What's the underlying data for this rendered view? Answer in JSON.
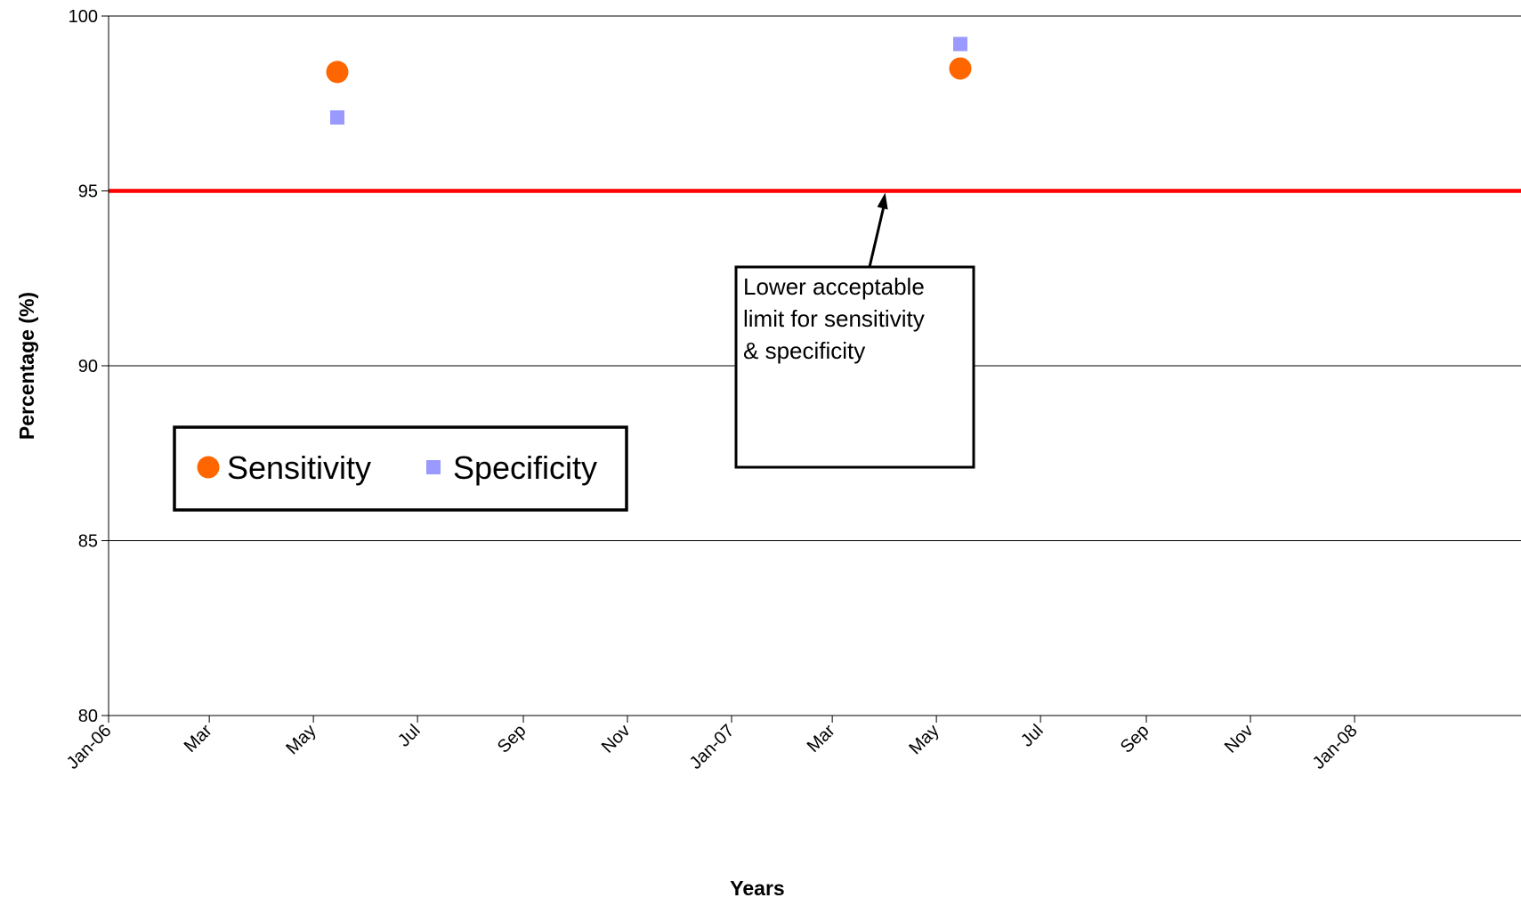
{
  "chart_data": {
    "type": "scatter",
    "xlabel": "Years",
    "ylabel": "Percentage (%)",
    "ylim": [
      80,
      100
    ],
    "yticks": [
      80,
      85,
      90,
      95,
      100
    ],
    "xlim": [
      "2006-01-01",
      "2008-01-15"
    ],
    "xticks": [
      {
        "date": "2006-01-01",
        "label": "Jan-06"
      },
      {
        "date": "2006-03-01",
        "label": "Mar"
      },
      {
        "date": "2006-05-01",
        "label": "May"
      },
      {
        "date": "2006-07-01",
        "label": "Jul"
      },
      {
        "date": "2006-09-01",
        "label": "Sep"
      },
      {
        "date": "2006-11-01",
        "label": "Nov"
      },
      {
        "date": "2007-01-01",
        "label": "Jan-07"
      },
      {
        "date": "2007-03-01",
        "label": "Mar"
      },
      {
        "date": "2007-05-01",
        "label": "May"
      },
      {
        "date": "2007-07-01",
        "label": "Jul"
      },
      {
        "date": "2007-09-01",
        "label": "Sep"
      },
      {
        "date": "2007-11-01",
        "label": "Nov"
      },
      {
        "date": "2008-01-01",
        "label": "Jan-08"
      }
    ],
    "grid": "horizontal",
    "series": [
      {
        "name": "Sensitivity",
        "marker": "circle",
        "color": "#ff6600",
        "points": [
          {
            "x": "2006-05-15",
            "y": 98.4
          },
          {
            "x": "2007-05-15",
            "y": 98.5
          }
        ]
      },
      {
        "name": "Specificity",
        "marker": "square",
        "color": "#9999ff",
        "points": [
          {
            "x": "2006-05-15",
            "y": 97.1
          },
          {
            "x": "2007-05-15",
            "y": 99.2
          }
        ]
      }
    ],
    "reference_line": {
      "y": 95,
      "color": "#ff0000"
    },
    "annotation": {
      "lines": [
        "Lower acceptable limit for sensitivity",
        "limit for sensitivity",
        "& specificity"
      ],
      "target": {
        "x": "2007-04-01",
        "y": 95
      }
    },
    "legend": {
      "placement": "lower-left"
    }
  }
}
